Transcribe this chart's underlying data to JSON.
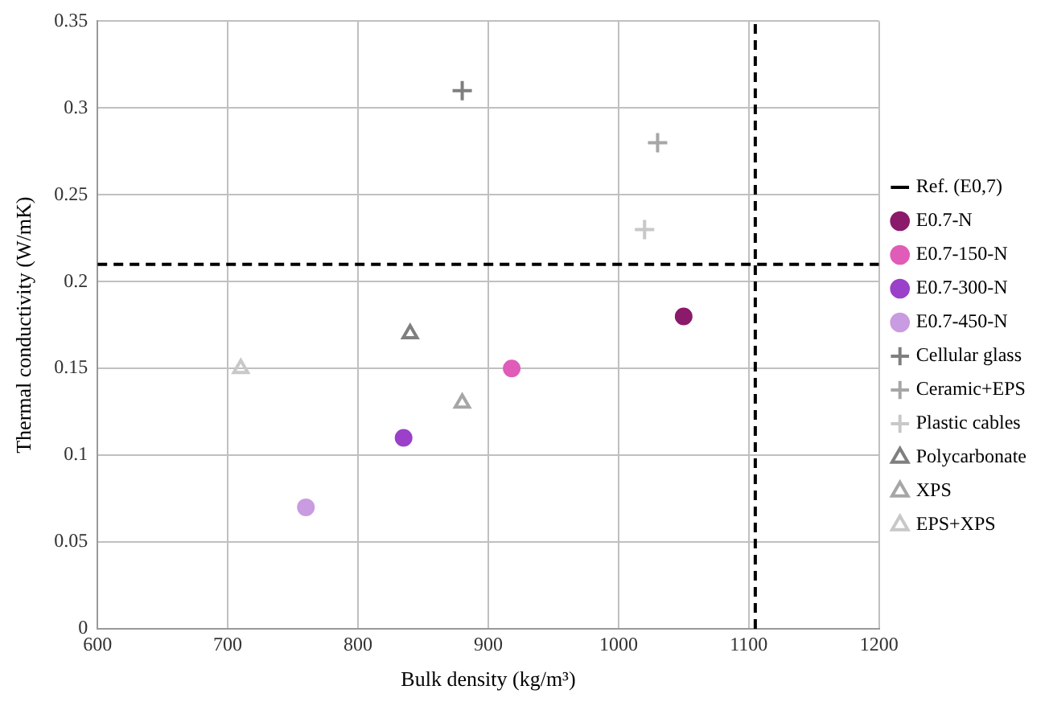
{
  "chart_data": {
    "type": "scatter",
    "xlabel": "Bulk density (kg/m³)",
    "ylabel": "Thermal conductivity (W/mK)",
    "xlim": [
      600,
      1200
    ],
    "xticks": [
      600,
      700,
      800,
      900,
      1000,
      1100,
      1200
    ],
    "ylim": [
      0,
      0.35
    ],
    "yticks": [
      0,
      0.05,
      0.1,
      0.15,
      0.2,
      0.25,
      0.3,
      0.35
    ],
    "grid": true,
    "legend": "right",
    "ref_lines": [
      {
        "axis": "y",
        "value": 0.21,
        "label": "Ref. (E0,7)",
        "color": "#000000",
        "line_style": "dashed"
      },
      {
        "axis": "x",
        "value": 1105,
        "color": "#000000",
        "line_style": "dashed"
      }
    ],
    "series": [
      {
        "name": "E0.7-N",
        "color": "#8b1a6b",
        "marker": "circle",
        "x": [
          1050
        ],
        "values": [
          0.18
        ]
      },
      {
        "name": "E0.7-150-N",
        "color": "#e05cb8",
        "marker": "circle",
        "x": [
          918
        ],
        "values": [
          0.15
        ]
      },
      {
        "name": "E0.7-300-N",
        "color": "#9b40c8",
        "marker": "circle",
        "x": [
          835
        ],
        "values": [
          0.11
        ]
      },
      {
        "name": "E0.7-450-N",
        "color": "#c99be0",
        "marker": "circle",
        "x": [
          760
        ],
        "values": [
          0.07
        ]
      },
      {
        "name": "Cellular glass",
        "color": "#7f7f7f",
        "marker": "cross",
        "x": [
          880
        ],
        "values": [
          0.31
        ]
      },
      {
        "name": "Ceramic+EPS",
        "color": "#a6a6a6",
        "marker": "cross",
        "x": [
          1030
        ],
        "values": [
          0.28
        ]
      },
      {
        "name": "Plastic cables",
        "color": "#c8c8c8",
        "marker": "cross",
        "x": [
          1020
        ],
        "values": [
          0.23
        ]
      },
      {
        "name": "Polycarbonate",
        "color": "#7f7f7f",
        "marker": "triangle",
        "x": [
          840
        ],
        "values": [
          0.17
        ]
      },
      {
        "name": "XPS",
        "color": "#a6a6a6",
        "marker": "triangle",
        "x": [
          880
        ],
        "values": [
          0.13
        ]
      },
      {
        "name": "EPS+XPS",
        "color": "#c8c8c8",
        "marker": "triangle",
        "x": [
          710
        ],
        "values": [
          0.15
        ]
      }
    ]
  }
}
